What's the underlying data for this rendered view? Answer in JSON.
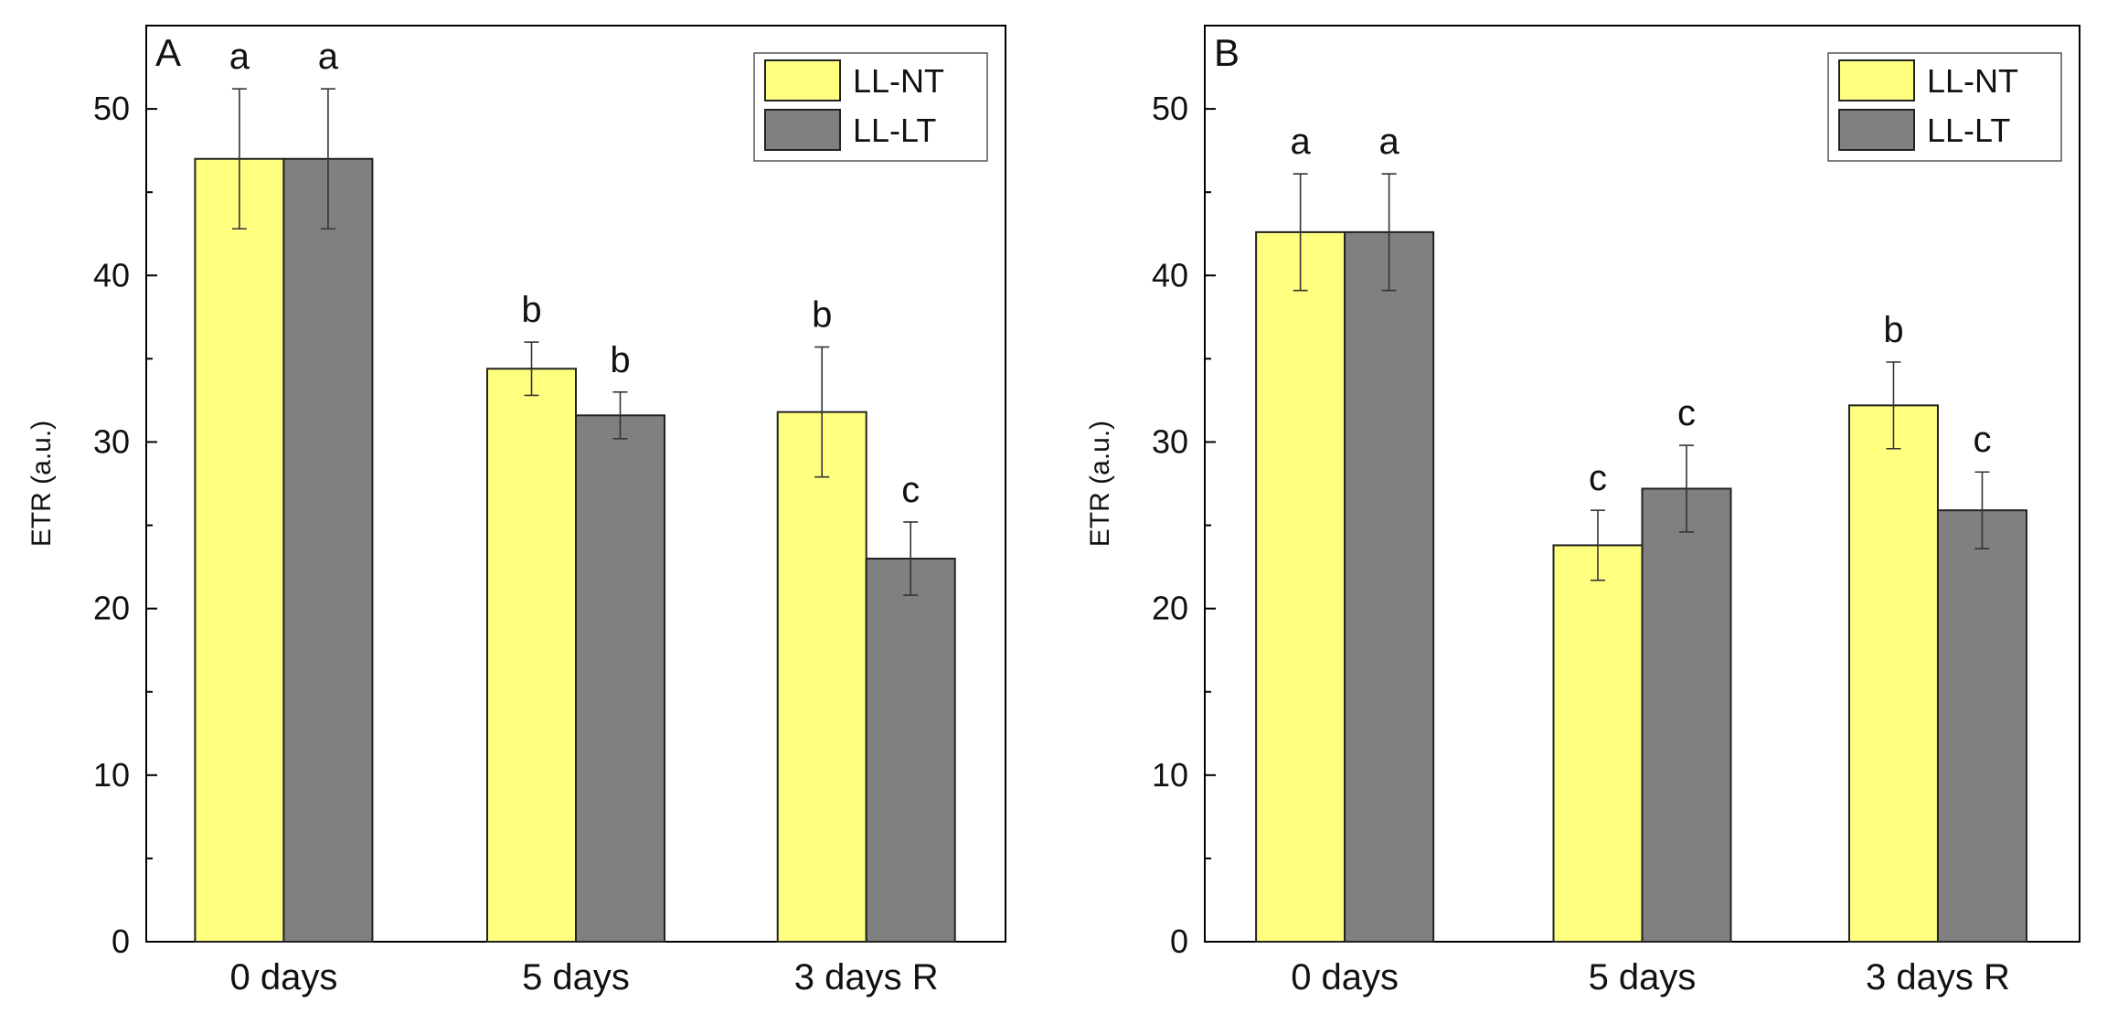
{
  "colors": {
    "LL-NT": "#ffff80",
    "LL-LT": "#808080",
    "axis": "#000000",
    "error": "#333333"
  },
  "chart_data": [
    {
      "type": "bar",
      "panel": "A",
      "ylabel": "ETR (a.u.)",
      "xlabel": "",
      "ylim": [
        0,
        55
      ],
      "yticks": [
        0,
        10,
        20,
        30,
        40,
        50
      ],
      "categories": [
        "0 days",
        "5 days",
        "3 days R"
      ],
      "legend": {
        "position": "top-right",
        "entries": [
          "LL-NT",
          "LL-LT"
        ]
      },
      "series": [
        {
          "name": "LL-NT",
          "values": [
            47.0,
            34.4,
            31.8
          ],
          "errors": [
            4.2,
            1.6,
            3.9
          ],
          "letters": [
            "a",
            "b",
            "b"
          ]
        },
        {
          "name": "LL-LT",
          "values": [
            47.0,
            31.6,
            23.0
          ],
          "errors": [
            4.2,
            1.4,
            2.2
          ],
          "letters": [
            "a",
            "b",
            "c"
          ]
        }
      ]
    },
    {
      "type": "bar",
      "panel": "B",
      "ylabel": "ETR (a.u.)",
      "xlabel": "",
      "ylim": [
        0,
        55
      ],
      "yticks": [
        0,
        10,
        20,
        30,
        40,
        50
      ],
      "categories": [
        "0 days",
        "5 days",
        "3 days R"
      ],
      "legend": {
        "position": "top-right",
        "entries": [
          "LL-NT",
          "LL-LT"
        ]
      },
      "series": [
        {
          "name": "LL-NT",
          "values": [
            42.6,
            23.8,
            32.2
          ],
          "errors": [
            3.5,
            2.1,
            2.6
          ],
          "letters": [
            "a",
            "c",
            "b"
          ]
        },
        {
          "name": "LL-LT",
          "values": [
            42.6,
            27.2,
            25.9
          ],
          "errors": [
            3.5,
            2.6,
            2.3
          ],
          "letters": [
            "a",
            "c",
            "c"
          ]
        }
      ]
    }
  ]
}
